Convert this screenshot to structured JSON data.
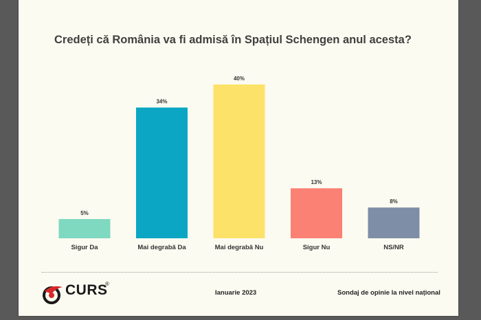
{
  "chart_data": {
    "type": "bar",
    "title": "Credeți că România va fi admisă în Spațiul Schengen anul acesta?",
    "categories": [
      "Sigur Da",
      "Mai degrabă Da",
      "Mai degrabă Nu",
      "Sigur Nu",
      "NS/NR"
    ],
    "values": [
      5,
      34,
      40,
      13,
      8
    ],
    "data_labels": [
      "5%",
      "34%",
      "40%",
      "13%",
      "8%"
    ],
    "colors": [
      "#7fd8c0",
      "#0aa6c4",
      "#fde26a",
      "#fb8174",
      "#7f8ea7"
    ],
    "unit": "%",
    "ylim": [
      0,
      40
    ],
    "grid": false,
    "legend": "none"
  },
  "footer": {
    "logo_text": "CURS",
    "logo_mark": "®",
    "date": "Ianuarie 2023",
    "source": "Sondaj de opinie la nivel național"
  }
}
